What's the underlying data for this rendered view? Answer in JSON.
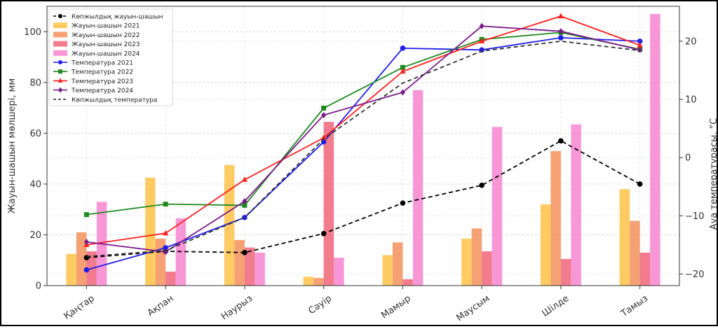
{
  "chart_data": {
    "type": "bar",
    "title": "",
    "categories": [
      "Қаңтар",
      "Ақпан",
      "Наурыз",
      "Сәуір",
      "Мамыр",
      "Маусым",
      "Шілде",
      "Тамыз"
    ],
    "ylabel_left": "Жауын-шашын мөлшері, мм",
    "ylabel_right": "Ауа температурасы, °C",
    "ylim_left": [
      0,
      110
    ],
    "ylim_right": [
      -22,
      26
    ],
    "yticks_left": [
      "0",
      "20",
      "40",
      "60",
      "80",
      "100"
    ],
    "yticks_right": [
      "−20",
      "−10",
      "0",
      "10",
      "20"
    ],
    "grid": true,
    "legend_position": "top-left",
    "bar_series": [
      {
        "name": "Жауын-шашын 2021",
        "color": "#ffc247",
        "values": [
          12.5,
          42.5,
          47.5,
          3.5,
          12,
          18.5,
          32,
          38
        ]
      },
      {
        "name": "Жауын-шашын 2022",
        "color": "#f5905a",
        "values": [
          21,
          18.5,
          18,
          3,
          17,
          22.5,
          53,
          25.5
        ]
      },
      {
        "name": "Жауын-шашын 2023",
        "color": "#f0657a",
        "values": [
          13.5,
          5.5,
          15,
          64.5,
          2.5,
          13.5,
          10.5,
          13
        ]
      },
      {
        "name": "Жауын-шашын 2024",
        "color": "#f785cf",
        "values": [
          33,
          26.5,
          13,
          11,
          77,
          62.5,
          63.5,
          107
        ]
      }
    ],
    "line_series": [
      {
        "name": "Көпжылдық жауын-шашын",
        "axis": "left",
        "color": "#000000",
        "dash": "6,4",
        "marker": "circle",
        "values": [
          11,
          13.5,
          13,
          20.5,
          32.5,
          39.5,
          57,
          40
        ]
      },
      {
        "name": "Температура 2021",
        "axis": "right",
        "color": "#1f1fe8",
        "dash": "",
        "marker": "circle",
        "values": [
          -19.3,
          -15.5,
          -10.3,
          2.7,
          18.8,
          18.5,
          20.6,
          20
        ]
      },
      {
        "name": "Температура 2022",
        "axis": "right",
        "color": "#1e8a1e",
        "dash": "",
        "marker": "square",
        "values": [
          -9.8,
          -8,
          -8.2,
          8.5,
          15.5,
          20.3,
          21.5,
          18.6
        ]
      },
      {
        "name": "Температура 2023",
        "axis": "right",
        "color": "#ff2020",
        "dash": "",
        "marker": "triangle",
        "values": [
          -15,
          -13,
          -3.8,
          3.4,
          14.8,
          20,
          24.3,
          19.3
        ]
      },
      {
        "name": "Температура 2024",
        "axis": "right",
        "color": "#7a1a8a",
        "dash": "",
        "marker": "diamond",
        "values": [
          -14.5,
          -16.2,
          -7.5,
          7.3,
          11.2,
          22.6,
          21.7,
          18.5
        ]
      },
      {
        "name": "Көпжылдық температура",
        "axis": "right",
        "color": "#333333",
        "dash": "6,4",
        "marker": "none",
        "values": [
          -17,
          -16,
          -10.3,
          3.2,
          12.8,
          18.3,
          20,
          18.4
        ]
      }
    ]
  }
}
